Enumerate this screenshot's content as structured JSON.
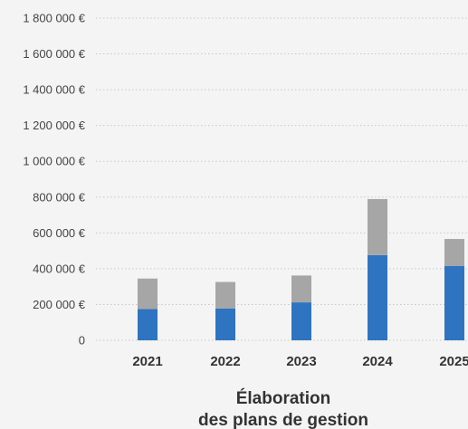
{
  "chart_data": {
    "type": "bar",
    "stacked": true,
    "categories": [
      "2021",
      "2022",
      "2023",
      "2024",
      "2025"
    ],
    "series": [
      {
        "values": [
          175000,
          178000,
          212000,
          476000,
          416000
        ],
        "color": "#2f74c0"
      },
      {
        "values": [
          170000,
          148000,
          150000,
          313000,
          150000
        ],
        "color": "#a6a6a6"
      }
    ],
    "ylim": [
      0,
      1800000
    ],
    "yticks": [
      0,
      200000,
      400000,
      600000,
      800000,
      1000000,
      1200000,
      1400000,
      1600000,
      1800000
    ],
    "ytick_labels": [
      "0",
      "200 000 €",
      "400 000 €",
      "600 000 €",
      "800 000 €",
      "1 000 000 €",
      "1 200 000 €",
      "1 400 000 €",
      "1 600 000 €",
      "1 800 000 €"
    ],
    "grid": true,
    "title_lines": [
      "Élaboration",
      "des plans de gestion"
    ]
  }
}
